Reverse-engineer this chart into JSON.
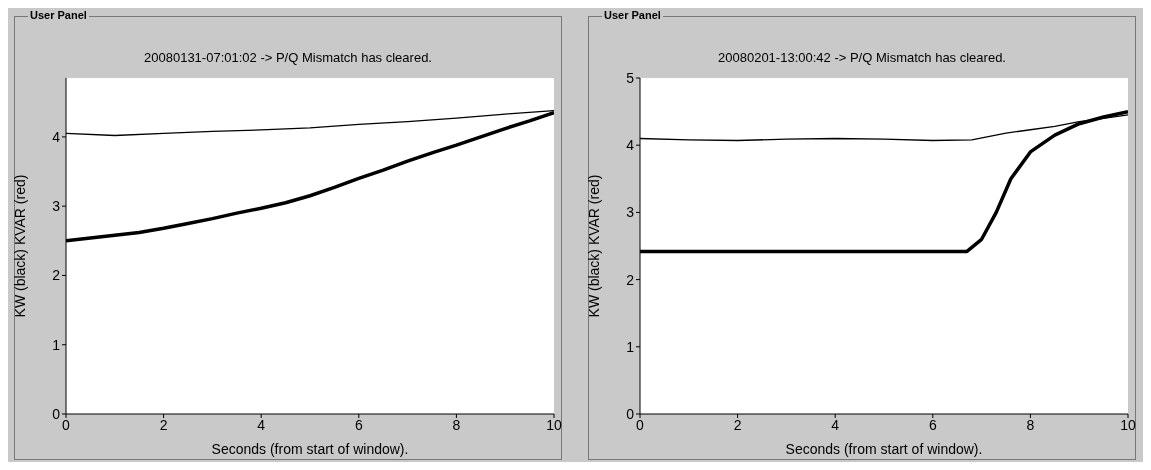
{
  "chart_data": [
    {
      "type": "line",
      "title": "20080131-07:01:02  -> P/Q Mismatch has cleared.",
      "xlabel": "Seconds (from start of window).",
      "ylabel": "KW (black)   KVAR (red)",
      "annotations": [
        "User Panel"
      ],
      "xlim": [
        0,
        10
      ],
      "ylim": [
        0,
        4.85
      ],
      "xticks": [
        0,
        2,
        4,
        6,
        8,
        10
      ],
      "yticks": [
        0,
        1,
        2,
        3,
        4
      ],
      "grid": false,
      "marker": "none",
      "line_style": "solid",
      "series": [
        {
          "color": "#000000",
          "x": [
            0,
            1,
            2,
            3,
            4,
            5,
            6,
            7,
            8,
            9,
            10
          ],
          "values": [
            4.05,
            4.02,
            4.05,
            4.08,
            4.1,
            4.13,
            4.18,
            4.22,
            4.27,
            4.33,
            4.38
          ]
        },
        {
          "color": "#000000",
          "x": [
            0,
            0.5,
            1,
            1.5,
            2,
            2.5,
            3,
            3.5,
            4,
            4.5,
            5,
            5.5,
            6,
            6.5,
            7,
            7.5,
            8,
            8.5,
            9,
            9.5,
            10
          ],
          "values": [
            2.5,
            2.54,
            2.58,
            2.62,
            2.68,
            2.75,
            2.82,
            2.9,
            2.97,
            3.05,
            3.15,
            3.27,
            3.4,
            3.52,
            3.65,
            3.77,
            3.88,
            4.0,
            4.12,
            4.23,
            4.35
          ]
        }
      ]
    },
    {
      "type": "line",
      "title": "20080201-13:00:42  -> P/Q Mismatch has cleared.",
      "xlabel": "Seconds (from start of window).",
      "ylabel": "KW (black)   KVAR (red)",
      "annotations": [
        "User Panel"
      ],
      "xlim": [
        0,
        10
      ],
      "ylim": [
        0,
        5
      ],
      "xticks": [
        0,
        2,
        4,
        6,
        8,
        10
      ],
      "yticks": [
        0,
        1,
        2,
        3,
        4,
        5
      ],
      "grid": false,
      "marker": "none",
      "line_style": "solid",
      "series": [
        {
          "color": "#000000",
          "x": [
            0,
            1,
            2,
            3,
            4,
            5,
            6,
            6.8,
            7.5,
            8,
            8.5,
            9,
            9.5,
            10
          ],
          "values": [
            4.1,
            4.08,
            4.07,
            4.09,
            4.1,
            4.09,
            4.07,
            4.08,
            4.18,
            4.23,
            4.28,
            4.35,
            4.4,
            4.45
          ]
        },
        {
          "color": "#000000",
          "x": [
            0,
            1,
            2,
            3,
            4,
            5,
            6,
            6.7,
            7,
            7.3,
            7.6,
            8,
            8.5,
            9,
            9.5,
            10
          ],
          "values": [
            2.42,
            2.42,
            2.42,
            2.42,
            2.42,
            2.42,
            2.42,
            2.42,
            2.6,
            3.0,
            3.5,
            3.9,
            4.15,
            4.32,
            4.42,
            4.5
          ]
        }
      ]
    }
  ]
}
